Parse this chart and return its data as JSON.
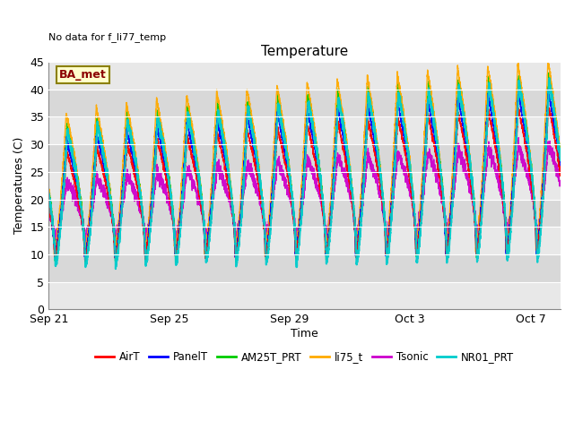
{
  "title": "Temperature",
  "xlabel": "Time",
  "ylabel": "Temperatures (C)",
  "no_data_text": "No data for f_li77_temp",
  "ba_met_label": "BA_met",
  "ylim": [
    0,
    45
  ],
  "yticks": [
    0,
    5,
    10,
    15,
    20,
    25,
    30,
    35,
    40,
    45
  ],
  "xtick_labels": [
    "Sep 21",
    "Sep 25",
    "Sep 29",
    "Oct 3",
    "Oct 7"
  ],
  "xtick_positions": [
    0,
    4,
    8,
    12,
    16
  ],
  "xlim": [
    0,
    17
  ],
  "legend_entries": [
    {
      "label": "AirT",
      "color": "#ff0000"
    },
    {
      "label": "PanelT",
      "color": "#0000ff"
    },
    {
      "label": "AM25T_PRT",
      "color": "#00cc00"
    },
    {
      "label": "li75_t",
      "color": "#ffaa00"
    },
    {
      "label": "Tsonic",
      "color": "#cc00cc"
    },
    {
      "label": "NR01_PRT",
      "color": "#00cccc"
    }
  ],
  "bg_bands": [
    {
      "ymin": 5,
      "ymax": 10,
      "color": "#d8d8d8"
    },
    {
      "ymin": 15,
      "ymax": 20,
      "color": "#d8d8d8"
    },
    {
      "ymin": 25,
      "ymax": 30,
      "color": "#d8d8d8"
    },
    {
      "ymin": 35,
      "ymax": 40,
      "color": "#d8d8d8"
    }
  ],
  "total_days": 17,
  "series_params": {
    "AirT": {
      "color": "#ff0000",
      "lw": 1.0
    },
    "PanelT": {
      "color": "#0000ff",
      "lw": 1.0
    },
    "AM25T_PRT": {
      "color": "#00cc00",
      "lw": 1.0
    },
    "li75_t": {
      "color": "#ffaa00",
      "lw": 1.0
    },
    "Tsonic": {
      "color": "#cc00cc",
      "lw": 1.0
    },
    "NR01_PRT": {
      "color": "#00cccc",
      "lw": 1.5
    }
  },
  "axes_bg": "#e8e8e8",
  "fig_size": [
    6.4,
    4.8
  ],
  "dpi": 100
}
